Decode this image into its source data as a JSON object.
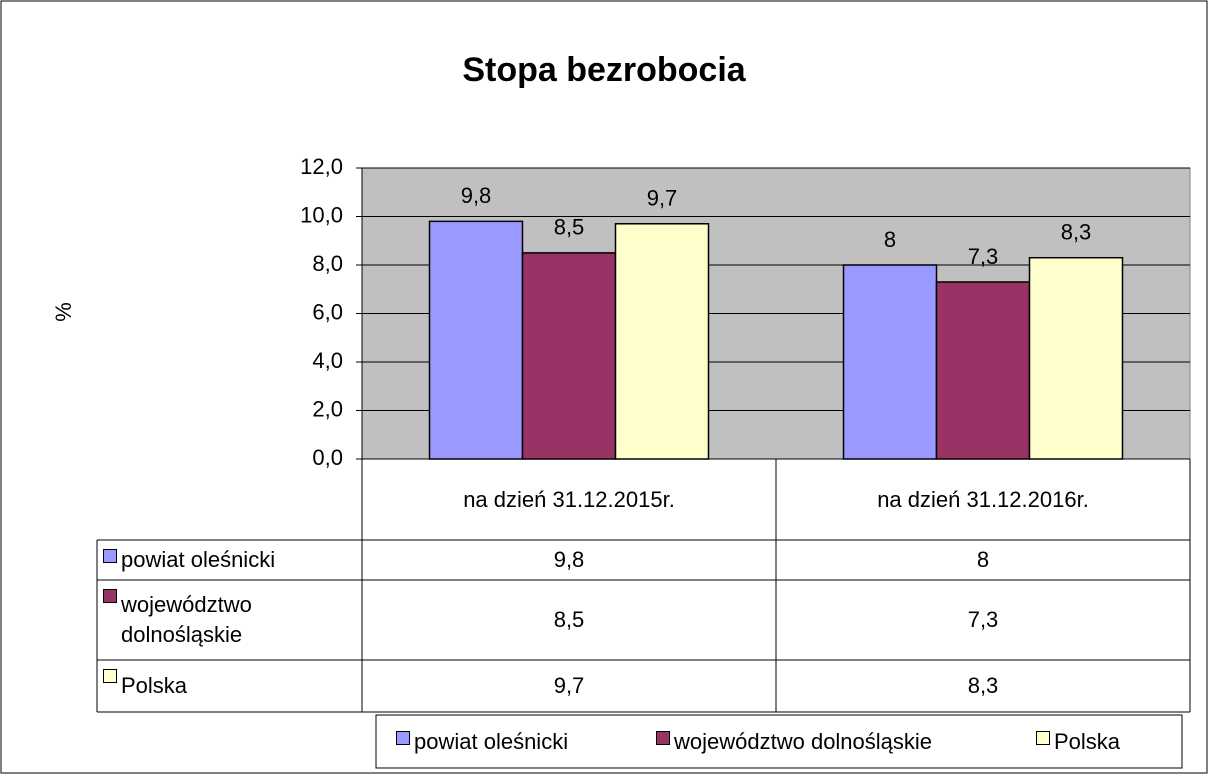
{
  "chart_data": {
    "type": "bar",
    "title": "Stopa bezrobocia",
    "y_label": "%",
    "categories": [
      "na dzień 31.12.2015r.",
      "na dzień 31.12.2016r."
    ],
    "series": [
      {
        "name": "powiat oleśnicki",
        "color": "#9999ff",
        "values": [
          9.8,
          8
        ],
        "value_labels": [
          "9,8",
          "8"
        ]
      },
      {
        "name": "województwo dolnośląskie",
        "color": "#993366",
        "values": [
          8.5,
          7.3
        ],
        "value_labels": [
          "8,5",
          "7,3"
        ]
      },
      {
        "name": "Polska",
        "color": "#ffffcc",
        "values": [
          9.7,
          8.3
        ],
        "value_labels": [
          "9,7",
          "8,3"
        ]
      }
    ],
    "ylim": [
      0,
      12
    ],
    "yticks": [
      {
        "value": 0,
        "label": "0,0"
      },
      {
        "value": 2,
        "label": "2,0"
      },
      {
        "value": 4,
        "label": "4,0"
      },
      {
        "value": 6,
        "label": "6,0"
      },
      {
        "value": 8,
        "label": "8,0"
      },
      {
        "value": 10,
        "label": "10,0"
      },
      {
        "value": 12,
        "label": "12,0"
      }
    ],
    "grid": true,
    "plot_background": "#c0c0c0",
    "legend": "bottom"
  }
}
